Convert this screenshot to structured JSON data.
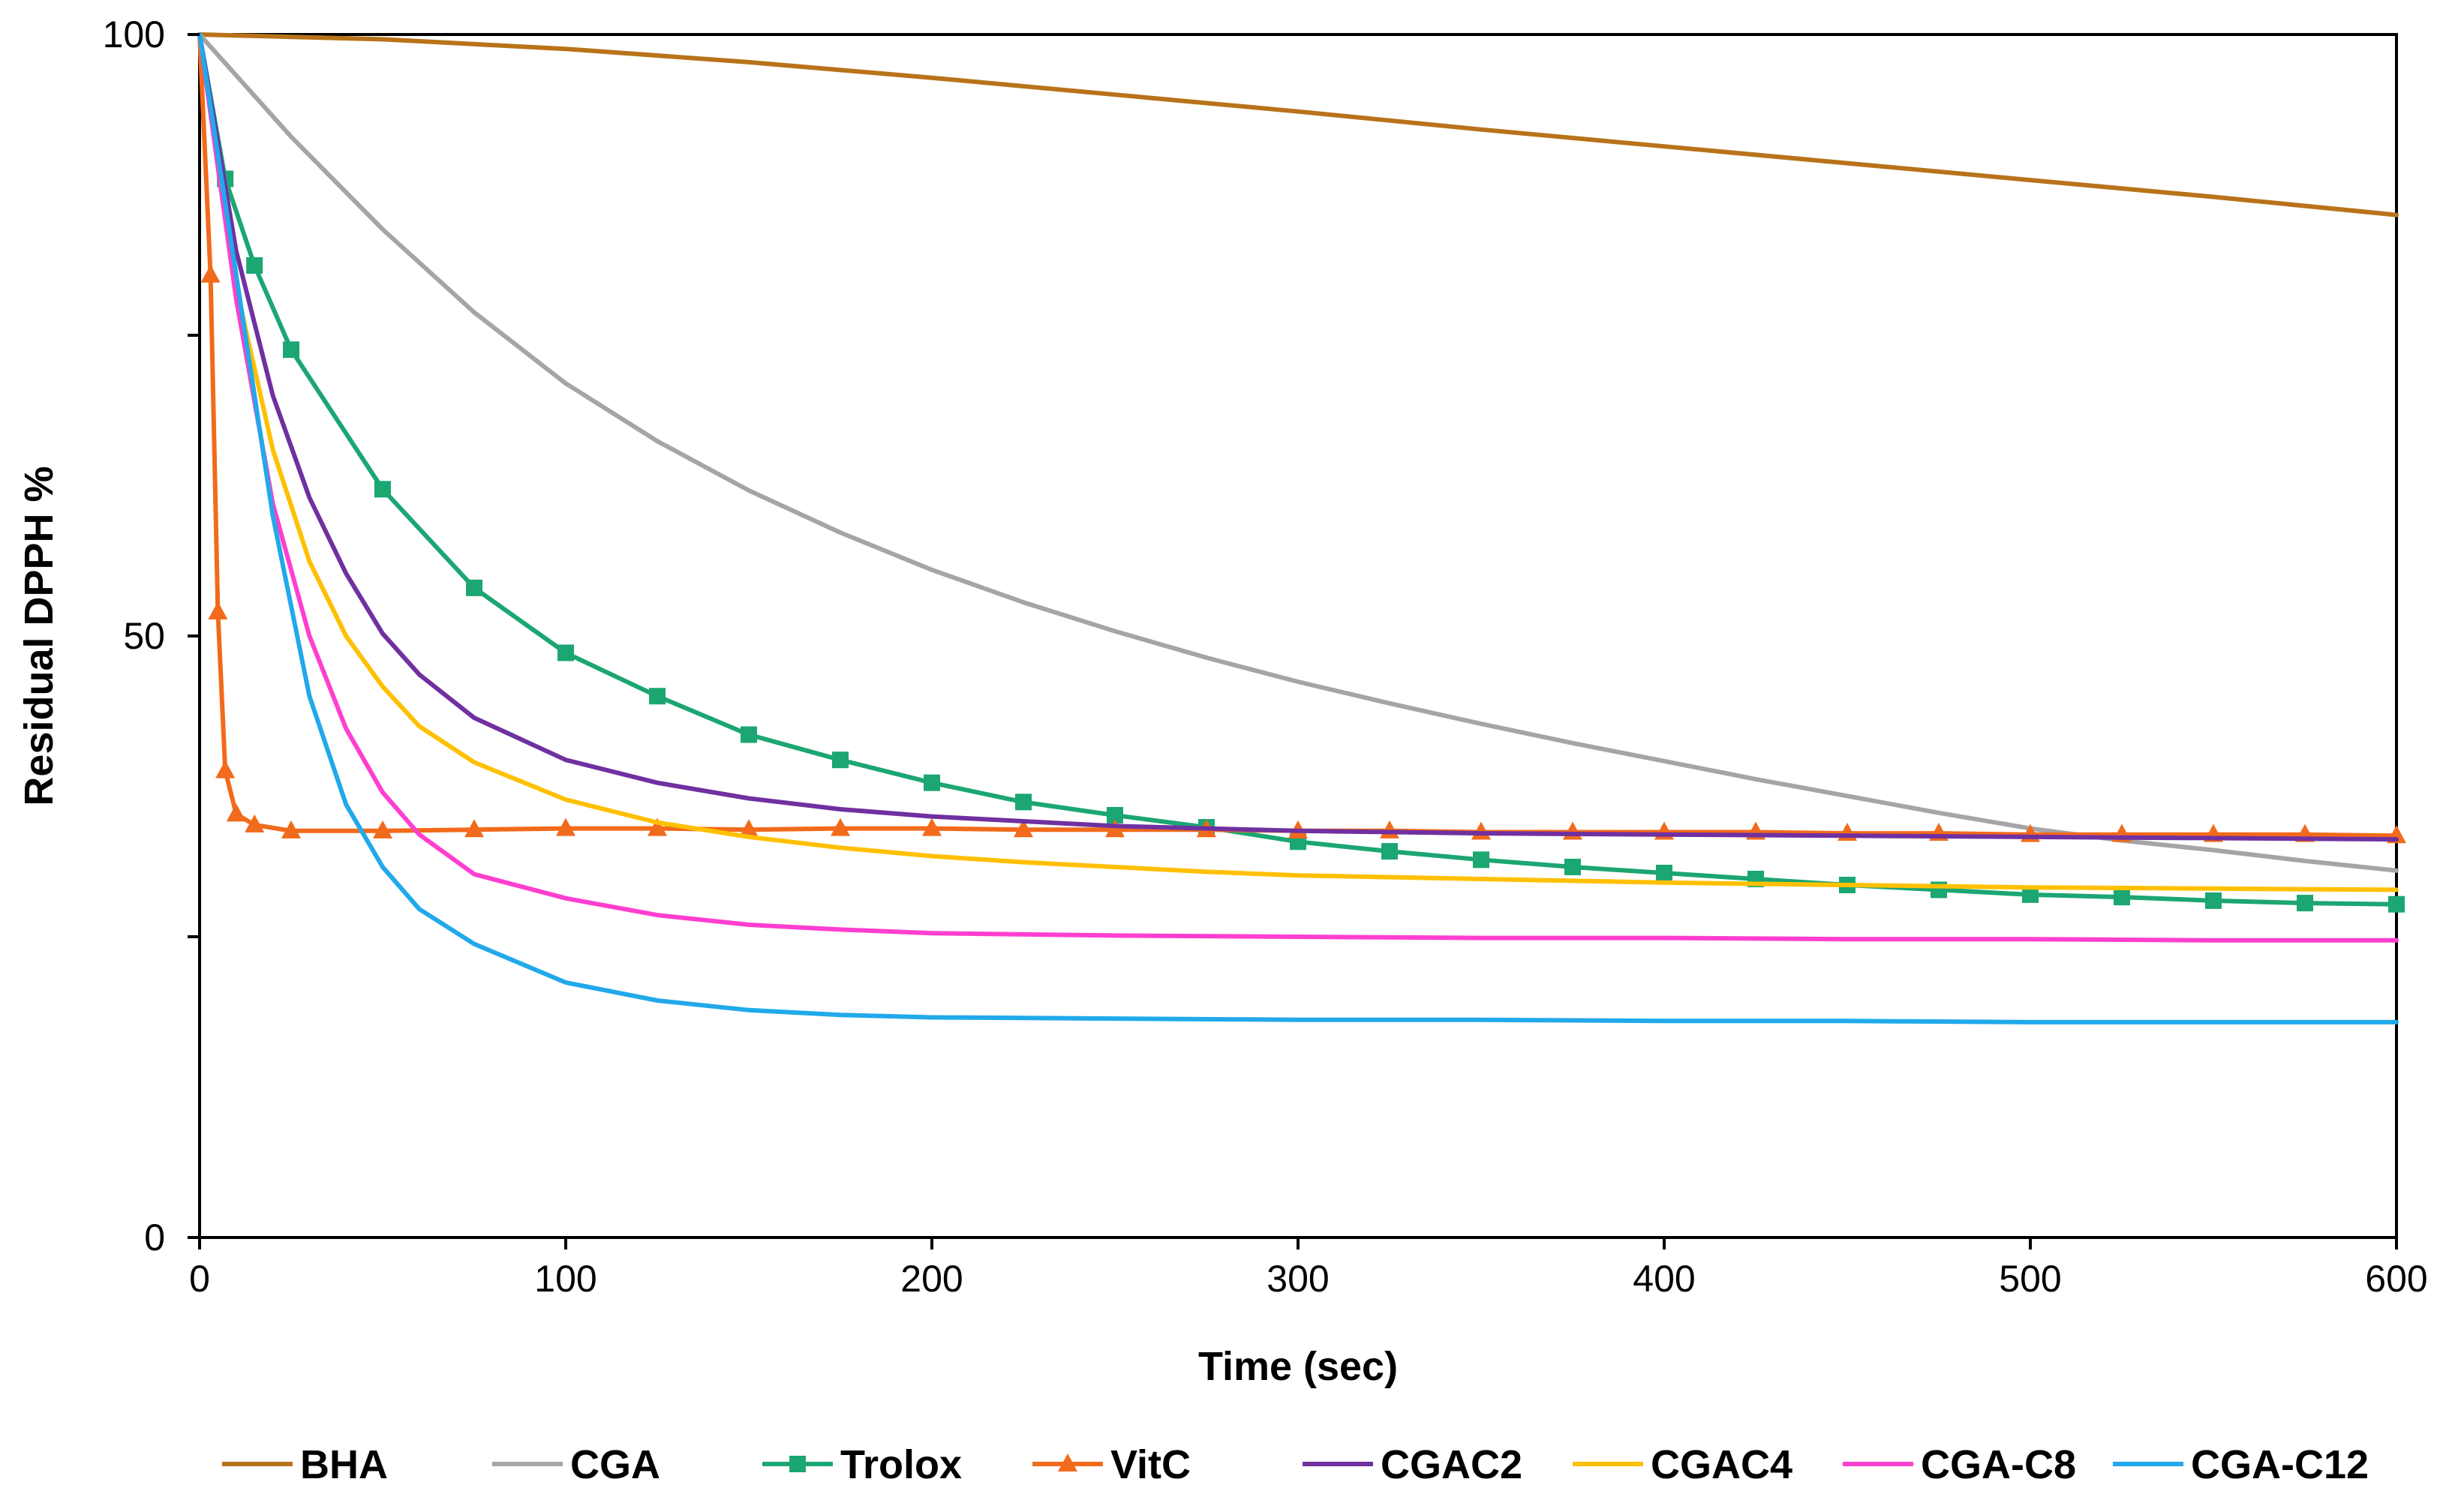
{
  "chart_data": {
    "type": "line",
    "title": "",
    "xlabel": "Time (sec)",
    "ylabel": "Residual DPPH %",
    "xlim": [
      0,
      600
    ],
    "ylim": [
      0,
      100
    ],
    "xticks": [
      0,
      100,
      200,
      300,
      400,
      500,
      600
    ],
    "xtick_labels": [
      "0",
      "100",
      "200",
      "300",
      "400",
      "500",
      "600"
    ],
    "yticks": [
      0,
      25,
      50,
      75,
      100
    ],
    "ytick_labels": [
      "0",
      "",
      "50",
      "",
      "100"
    ],
    "grid": false,
    "legend_position": "bottom",
    "series": [
      {
        "name": "BHA",
        "color": "#B8731A",
        "marker": "none",
        "x": [
          0,
          50,
          100,
          150,
          200,
          250,
          300,
          350,
          400,
          450,
          500,
          550,
          600
        ],
        "y": [
          100,
          99.6,
          98.8,
          97.7,
          96.4,
          95.0,
          93.6,
          92.1,
          90.7,
          89.3,
          87.9,
          86.5,
          85.0
        ]
      },
      {
        "name": "CGA",
        "color": "#A5A5A5",
        "marker": "none",
        "x": [
          0,
          25,
          50,
          75,
          100,
          125,
          150,
          175,
          200,
          225,
          250,
          275,
          300,
          325,
          350,
          375,
          400,
          425,
          450,
          475,
          500,
          525,
          550,
          575,
          600
        ],
        "y": [
          100,
          91.5,
          83.8,
          76.9,
          71.0,
          66.2,
          62.1,
          58.6,
          55.5,
          52.8,
          50.4,
          48.2,
          46.2,
          44.4,
          42.7,
          41.1,
          39.6,
          38.1,
          36.7,
          35.3,
          34.0,
          33.0,
          32.2,
          31.3,
          30.5
        ]
      },
      {
        "name": "Trolox",
        "color": "#1BA672",
        "marker": "square",
        "x": [
          0,
          7,
          15,
          25,
          50,
          75,
          100,
          125,
          150,
          175,
          200,
          225,
          250,
          275,
          300,
          325,
          350,
          375,
          400,
          425,
          450,
          475,
          500,
          525,
          550,
          575,
          600
        ],
        "y": [
          100,
          88.0,
          80.8,
          73.8,
          62.2,
          54.0,
          48.6,
          45.0,
          41.8,
          39.7,
          37.8,
          36.2,
          35.1,
          34.1,
          32.9,
          32.1,
          31.4,
          30.8,
          30.3,
          29.8,
          29.3,
          28.9,
          28.5,
          28.3,
          28.0,
          27.8,
          27.7
        ]
      },
      {
        "name": "VitC",
        "color": "#F26A1B",
        "marker": "triangle",
        "x": [
          0,
          3,
          5,
          7,
          10,
          15,
          25,
          50,
          75,
          100,
          125,
          150,
          175,
          200,
          225,
          250,
          275,
          300,
          325,
          350,
          375,
          400,
          425,
          450,
          475,
          500,
          525,
          550,
          575,
          600
        ],
        "y": [
          100,
          80,
          52,
          38.8,
          35.2,
          34.3,
          33.8,
          33.8,
          33.9,
          34.0,
          34.0,
          33.9,
          34.0,
          34.0,
          33.9,
          33.9,
          33.9,
          33.8,
          33.8,
          33.7,
          33.7,
          33.7,
          33.7,
          33.6,
          33.6,
          33.5,
          33.5,
          33.5,
          33.5,
          33.4
        ]
      },
      {
        "name": "CGAC2",
        "color": "#7030A0",
        "marker": "none",
        "x": [
          0,
          10,
          20,
          30,
          40,
          50,
          60,
          75,
          100,
          125,
          150,
          175,
          200,
          225,
          250,
          275,
          300,
          350,
          400,
          450,
          500,
          550,
          600
        ],
        "y": [
          100,
          82,
          70,
          61.5,
          55.2,
          50.2,
          46.8,
          43.2,
          39.7,
          37.8,
          36.5,
          35.6,
          35.0,
          34.6,
          34.2,
          34.0,
          33.8,
          33.6,
          33.5,
          33.4,
          33.3,
          33.2,
          33.1
        ]
      },
      {
        "name": "CGAC4",
        "color": "#FFC000",
        "marker": "none",
        "x": [
          0,
          10,
          20,
          30,
          40,
          50,
          60,
          75,
          100,
          125,
          150,
          175,
          200,
          225,
          250,
          275,
          300,
          350,
          400,
          450,
          500,
          550,
          600
        ],
        "y": [
          100,
          79,
          65.5,
          56.2,
          50.0,
          45.8,
          42.5,
          39.5,
          36.4,
          34.5,
          33.3,
          32.4,
          31.7,
          31.2,
          30.8,
          30.4,
          30.1,
          29.8,
          29.5,
          29.3,
          29.1,
          29.0,
          28.9
        ]
      },
      {
        "name": "CGA-C8",
        "color": "#FF3FD0",
        "marker": "none",
        "x": [
          0,
          10,
          20,
          30,
          40,
          50,
          60,
          75,
          100,
          125,
          150,
          175,
          200,
          250,
          300,
          350,
          400,
          450,
          500,
          550,
          600
        ],
        "y": [
          100,
          78,
          61,
          50,
          42.3,
          37.0,
          33.5,
          30.2,
          28.2,
          26.8,
          26.0,
          25.6,
          25.3,
          25.1,
          25.0,
          24.9,
          24.9,
          24.8,
          24.8,
          24.7,
          24.7
        ]
      },
      {
        "name": "CGA-C12",
        "color": "#21A9EA",
        "marker": "none",
        "x": [
          0,
          10,
          20,
          30,
          40,
          50,
          60,
          75,
          100,
          125,
          150,
          175,
          200,
          250,
          300,
          350,
          400,
          450,
          500,
          550,
          600
        ],
        "y": [
          100,
          80,
          60,
          45,
          36.0,
          30.8,
          27.3,
          24.4,
          21.2,
          19.7,
          18.9,
          18.5,
          18.3,
          18.2,
          18.1,
          18.1,
          18.0,
          18.0,
          17.9,
          17.9,
          17.9
        ]
      }
    ]
  }
}
